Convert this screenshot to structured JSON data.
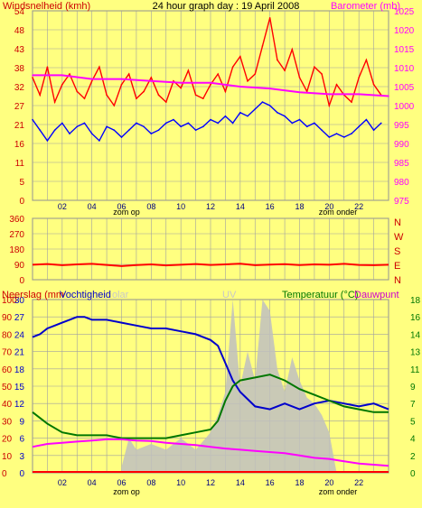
{
  "chart_data": [
    {
      "type": "line",
      "title": "24 hour graph day : 19 April 2008",
      "left_axis_label": "Windsnelheid (kmh)",
      "right_axis_label": "Barometer (mb)",
      "left_ticks": [
        54,
        48,
        43,
        38,
        32,
        27,
        21,
        16,
        11,
        5,
        0
      ],
      "right_ticks": [
        1025,
        1020,
        1015,
        1010,
        1005,
        1000,
        995,
        990,
        985,
        980,
        975
      ],
      "ylim_left": [
        0,
        54
      ],
      "ylim_right": [
        975,
        1025
      ],
      "x_ticks": [
        "02",
        "04",
        "06",
        "08",
        "10",
        "12",
        "14",
        "16",
        "18",
        "20",
        "22"
      ],
      "annotations": {
        "sunrise": "zom op",
        "sunset": "zom onder"
      },
      "series": [
        {
          "color": "#FF0000",
          "axis": "left",
          "x": [
            0,
            0.5,
            1,
            1.5,
            2,
            2.5,
            3,
            3.5,
            4,
            4.5,
            5,
            5.5,
            6,
            6.5,
            7,
            7.5,
            8,
            8.5,
            9,
            9.5,
            10,
            10.5,
            11,
            11.5,
            12,
            12.5,
            13,
            13.5,
            14,
            14.5,
            15,
            15.5,
            16,
            16.5,
            17,
            17.5,
            18,
            18.5,
            19,
            19.5,
            20,
            20.5,
            21,
            21.5,
            22,
            22.5,
            23,
            23.5
          ],
          "values": [
            35,
            30,
            38,
            28,
            33,
            36,
            31,
            29,
            34,
            38,
            30,
            27,
            33,
            36,
            29,
            31,
            35,
            30,
            28,
            34,
            32,
            37,
            30,
            29,
            33,
            36,
            31,
            38,
            41,
            34,
            36,
            44,
            52,
            40,
            37,
            43,
            35,
            31,
            38,
            36,
            27,
            33,
            30,
            28,
            35,
            40,
            33,
            30
          ]
        },
        {
          "color": "#0000FF",
          "axis": "left",
          "x": [
            0,
            0.5,
            1,
            1.5,
            2,
            2.5,
            3,
            3.5,
            4,
            4.5,
            5,
            5.5,
            6,
            6.5,
            7,
            7.5,
            8,
            8.5,
            9,
            9.5,
            10,
            10.5,
            11,
            11.5,
            12,
            12.5,
            13,
            13.5,
            14,
            14.5,
            15,
            15.5,
            16,
            16.5,
            17,
            17.5,
            18,
            18.5,
            19,
            19.5,
            20,
            20.5,
            21,
            21.5,
            22,
            22.5,
            23,
            23.5
          ],
          "values": [
            23,
            20,
            17,
            20,
            22,
            19,
            21,
            22,
            19,
            17,
            21,
            20,
            18,
            20,
            22,
            21,
            19,
            20,
            22,
            23,
            21,
            22,
            20,
            21,
            23,
            22,
            24,
            22,
            25,
            24,
            26,
            28,
            27,
            25,
            24,
            22,
            23,
            21,
            22,
            20,
            18,
            19,
            18,
            19,
            21,
            23,
            20,
            22
          ]
        },
        {
          "color": "#FF00FF",
          "axis": "right",
          "x": [
            0,
            2,
            4,
            6,
            8,
            10,
            12,
            14,
            16,
            18,
            20,
            22,
            24
          ],
          "values": [
            1008,
            1008,
            1007,
            1007,
            1006.5,
            1006,
            1006,
            1005,
            1004.5,
            1003.5,
            1003,
            1003,
            1002.5
          ]
        }
      ]
    },
    {
      "type": "line",
      "right_axis_label_letters": [
        "N",
        "W",
        "S",
        "E",
        "N"
      ],
      "left_ticks": [
        360,
        270,
        180,
        90,
        0
      ],
      "ylim": [
        0,
        360
      ],
      "x_ticks": [],
      "series": [
        {
          "color": "#FF0000",
          "x": [
            0,
            1,
            2,
            3,
            4,
            5,
            6,
            7,
            8,
            9,
            10,
            11,
            12,
            13,
            14,
            15,
            16,
            17,
            18,
            19,
            20,
            21,
            22,
            23,
            24
          ],
          "values": [
            88,
            92,
            85,
            90,
            93,
            87,
            80,
            86,
            90,
            84,
            88,
            92,
            87,
            90,
            94,
            85,
            89,
            91,
            86,
            90,
            88,
            93,
            87,
            85,
            88
          ]
        }
      ]
    },
    {
      "type": "line",
      "labels": {
        "neerslag": "Neerslag (mm",
        "vochtigheid": "Vochtigheid",
        "solar": "olar",
        "uv": "UV",
        "temperatuur": "Temperatuur (°C)",
        "dauwpunt": "Dauwpunt"
      },
      "left_ticks_1": [
        100,
        90,
        80,
        70,
        60,
        50,
        40,
        30,
        20,
        10,
        0
      ],
      "left_ticks_2": [
        30,
        27,
        24,
        21,
        18,
        15,
        12,
        9,
        6,
        3,
        0
      ],
      "right_ticks": [
        18,
        16,
        14,
        13,
        11,
        9,
        7,
        5,
        4,
        2,
        0
      ],
      "ylim_left": [
        0,
        30
      ],
      "x_ticks": [
        "02",
        "04",
        "06",
        "08",
        "10",
        "12",
        "14",
        "16",
        "18",
        "20",
        "22"
      ],
      "annotations": {
        "sunrise": "zom op",
        "sunset": "zom onder"
      },
      "series": [
        {
          "color": "#0000CC",
          "axis": "left_30",
          "x": [
            0,
            0.5,
            1,
            1.5,
            2,
            2.5,
            3,
            3.5,
            4,
            5,
            6,
            7,
            8,
            9,
            10,
            11,
            12,
            12.5,
            13,
            13.5,
            14,
            15,
            16,
            17,
            18,
            19,
            20,
            21,
            22,
            23,
            24
          ],
          "values": [
            23.5,
            24,
            25,
            25.5,
            26,
            26.5,
            27,
            27,
            26.5,
            26.5,
            26,
            25.5,
            25,
            25,
            24.5,
            24,
            23,
            22,
            19,
            16,
            14,
            11.5,
            11,
            12,
            11,
            12,
            12.5,
            12,
            11.5,
            12,
            11
          ]
        },
        {
          "color": "#007700",
          "axis": "left_30",
          "x": [
            0,
            1,
            2,
            3,
            4,
            5,
            6,
            7,
            8,
            9,
            10,
            11,
            12,
            12.5,
            13,
            13.5,
            14,
            15,
            16,
            17,
            18,
            19,
            20,
            21,
            22,
            23,
            24
          ],
          "values": [
            10.5,
            8.5,
            7,
            6.5,
            6.5,
            6.5,
            6,
            6,
            6,
            6,
            6.5,
            7,
            7.5,
            9,
            12.5,
            15,
            16,
            16.5,
            17,
            16,
            14.5,
            13.5,
            12.5,
            11.5,
            11,
            10.5,
            10.5
          ]
        },
        {
          "color": "#FF00FF",
          "axis": "left_30",
          "x": [
            0,
            1,
            2,
            3,
            4,
            5,
            6,
            7,
            8,
            9,
            10,
            11,
            12,
            13,
            14,
            15,
            16,
            17,
            18,
            19,
            20,
            21,
            22,
            23,
            24
          ],
          "values": [
            4.5,
            5,
            5.2,
            5.4,
            5.6,
            5.8,
            5.8,
            5.6,
            5.5,
            5.2,
            5,
            4.8,
            4.5,
            4.2,
            4,
            3.8,
            3.6,
            3.4,
            3,
            2.6,
            2.4,
            2,
            1.6,
            1.4,
            1.2
          ]
        },
        {
          "color": "#C0C0C0",
          "axis": "left_30",
          "style": "area",
          "x": [
            6,
            6.5,
            7,
            8,
            9,
            10,
            11,
            12,
            12.5,
            13,
            13.5,
            14,
            14.5,
            15,
            15.5,
            16,
            16.5,
            17,
            17.5,
            18,
            18.5,
            19,
            19.5,
            20,
            20.5
          ],
          "values": [
            1,
            6,
            4,
            5,
            4,
            6,
            4,
            7,
            10,
            14,
            30,
            15,
            21,
            16,
            30,
            28,
            18,
            14,
            20,
            16,
            13,
            12,
            10,
            7,
            0
          ]
        }
      ]
    }
  ]
}
